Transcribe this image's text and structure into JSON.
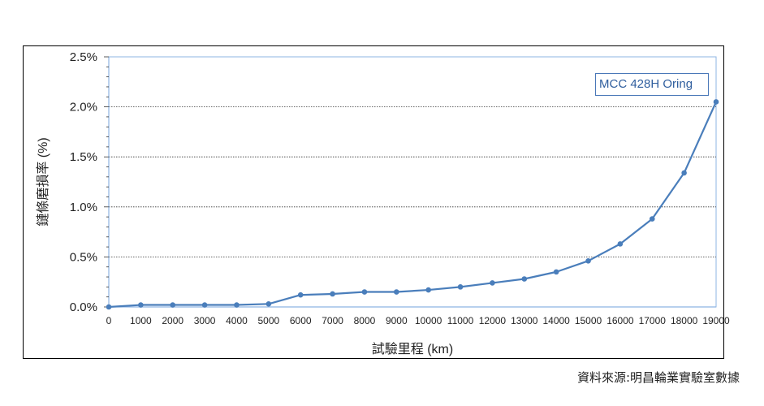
{
  "chart_data": {
    "type": "line",
    "xlabel": "試驗里程 (km)",
    "ylabel": "鏈條磨損率 (%)",
    "x": [
      0,
      1000,
      2000,
      3000,
      4000,
      5000,
      6000,
      7000,
      8000,
      9000,
      10000,
      11000,
      12000,
      13000,
      14000,
      15000,
      16000,
      17000,
      18000,
      19000
    ],
    "series": [
      {
        "name": "MCC 428H Oring",
        "values": [
          0.0,
          0.02,
          0.02,
          0.02,
          0.02,
          0.03,
          0.12,
          0.13,
          0.15,
          0.15,
          0.17,
          0.2,
          0.24,
          0.28,
          0.35,
          0.46,
          0.63,
          0.88,
          1.34,
          2.05
        ],
        "color": "#4a7ebb"
      }
    ],
    "ylim": [
      0,
      2.5
    ],
    "xlim": [
      0,
      19000
    ],
    "yticks": [
      "0.0%",
      "0.5%",
      "1.0%",
      "1.5%",
      "2.0%",
      "2.5%"
    ],
    "xticks": [
      "0",
      "1000",
      "2000",
      "3000",
      "4000",
      "5000",
      "6000",
      "7000",
      "8000",
      "9000",
      "10000",
      "11000",
      "12000",
      "13000",
      "14000",
      "15000",
      "16000",
      "17000",
      "18000",
      "19000"
    ],
    "grid": true,
    "legend_position": "top-right"
  },
  "source_note": "資料來源:明昌輪業實驗室數據"
}
